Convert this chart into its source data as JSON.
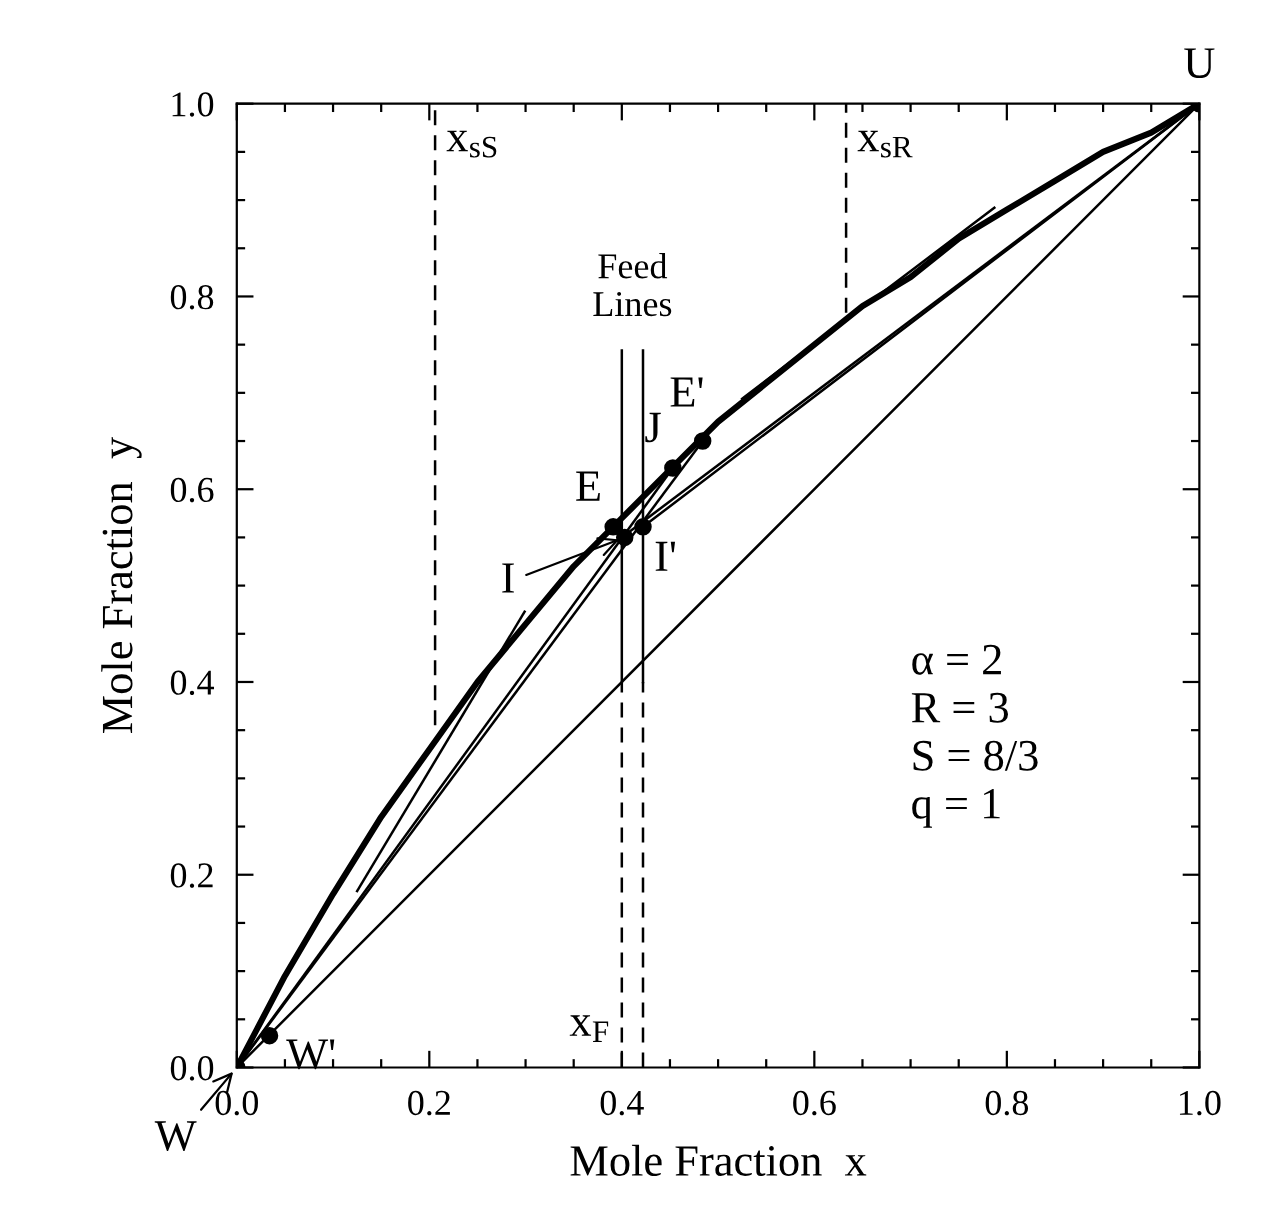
{
  "chart_data": {
    "type": "line",
    "xlabel": "Mole Fraction  x",
    "ylabel": "Mole Fraction  y",
    "xlim": [
      0,
      1
    ],
    "ylim": [
      0,
      1
    ],
    "xticks": [
      {
        "value": 0.0,
        "label": "0.0"
      },
      {
        "value": 0.05,
        "label": null
      },
      {
        "value": 0.1,
        "label": null
      },
      {
        "value": 0.15,
        "label": null
      },
      {
        "value": 0.2,
        "label": "0.2"
      },
      {
        "value": 0.25,
        "label": null
      },
      {
        "value": 0.3,
        "label": null
      },
      {
        "value": 0.35,
        "label": null
      },
      {
        "value": 0.4,
        "label": "0.4"
      },
      {
        "value": 0.45,
        "label": null
      },
      {
        "value": 0.5,
        "label": null
      },
      {
        "value": 0.55,
        "label": null
      },
      {
        "value": 0.6,
        "label": "0.6"
      },
      {
        "value": 0.65,
        "label": null
      },
      {
        "value": 0.7,
        "label": null
      },
      {
        "value": 0.75,
        "label": null
      },
      {
        "value": 0.8,
        "label": "0.8"
      },
      {
        "value": 0.85,
        "label": null
      },
      {
        "value": 0.9,
        "label": null
      },
      {
        "value": 0.95,
        "label": null
      },
      {
        "value": 1.0,
        "label": "1.0"
      }
    ],
    "yticks": [
      {
        "value": 0.0,
        "label": "0.0"
      },
      {
        "value": 0.05,
        "label": null
      },
      {
        "value": 0.1,
        "label": null
      },
      {
        "value": 0.15,
        "label": null
      },
      {
        "value": 0.2,
        "label": "0.2"
      },
      {
        "value": 0.25,
        "label": null
      },
      {
        "value": 0.3,
        "label": null
      },
      {
        "value": 0.35,
        "label": null
      },
      {
        "value": 0.4,
        "label": "0.4"
      },
      {
        "value": 0.45,
        "label": null
      },
      {
        "value": 0.5,
        "label": null
      },
      {
        "value": 0.55,
        "label": null
      },
      {
        "value": 0.6,
        "label": "0.6"
      },
      {
        "value": 0.65,
        "label": null
      },
      {
        "value": 0.7,
        "label": null
      },
      {
        "value": 0.75,
        "label": null
      },
      {
        "value": 0.8,
        "label": "0.8"
      },
      {
        "value": 0.85,
        "label": null
      },
      {
        "value": 0.9,
        "label": null
      },
      {
        "value": 0.95,
        "label": null
      },
      {
        "value": 1.0,
        "label": "1.0"
      }
    ],
    "series": [
      {
        "color": "#000000",
        "line_style": "solid",
        "x": [
          0,
          0.05,
          0.1,
          0.15,
          0.2,
          0.25,
          0.3,
          0.35,
          0.4,
          0.45,
          0.5,
          0.55,
          0.6,
          0.65,
          0.7,
          0.75,
          0.8,
          0.85,
          0.9,
          0.95,
          1.0
        ],
        "values": [
          0,
          0.095,
          0.18,
          0.26,
          0.33,
          0.4,
          0.46,
          0.52,
          0.57,
          0.62,
          0.67,
          0.71,
          0.75,
          0.79,
          0.82,
          0.86,
          0.89,
          0.92,
          0.95,
          0.97,
          1.0
        ]
      },
      {
        "type": "line",
        "color": "#000000",
        "line_style": "solid",
        "x": [
          0,
          1
        ],
        "values": [
          0,
          1
        ]
      },
      {
        "type": "line",
        "color": "#000000",
        "line_style": "solid",
        "x": [
          0.4,
          1
        ],
        "values": [
          0.55,
          1
        ]
      },
      {
        "type": "line",
        "color": "#000000",
        "line_style": "solid",
        "x": [
          0.422,
          1
        ],
        "values": [
          0.561,
          1
        ]
      },
      {
        "type": "line",
        "color": "#000000",
        "line_style": "solid",
        "x": [
          0,
          0.453
        ],
        "values": [
          0,
          0.622
        ]
      },
      {
        "type": "line",
        "color": "#000000",
        "line_style": "solid",
        "x": [
          0,
          0.484
        ],
        "values": [
          0,
          0.65
        ]
      },
      {
        "type": "line",
        "color": "#000000",
        "line_style": "solid",
        "x": [
          0.125,
          0.299
        ],
        "values": [
          0.183,
          0.473
        ]
      },
      {
        "type": "line",
        "color": "#000000",
        "line_style": "solid",
        "x": [
          0.525,
          0.787
        ],
        "values": [
          0.694,
          0.892
        ]
      },
      {
        "type": "line",
        "color": "#000000",
        "line_style": "solid",
        "x": [
          0.4,
          0.4
        ],
        "values": [
          0.4,
          0.744
        ]
      },
      {
        "type": "line",
        "color": "#000000",
        "line_style": "solid",
        "x": [
          0.422,
          0.422
        ],
        "values": [
          0.4,
          0.744
        ]
      },
      {
        "type": "line",
        "color": "#000000",
        "line_style": "dashed",
        "x": [
          0.4,
          0.4
        ],
        "values": [
          0,
          0.4
        ]
      },
      {
        "type": "line",
        "color": "#000000",
        "line_style": "dashed",
        "x": [
          0.422,
          0.422
        ],
        "values": [
          0,
          0.4
        ]
      },
      {
        "type": "line",
        "color": "#000000",
        "line_style": "dashed",
        "x": [
          0.206,
          0.206
        ],
        "values": [
          0.355,
          1.0
        ]
      },
      {
        "type": "line",
        "color": "#000000",
        "line_style": "dashed",
        "x": [
          0.633,
          0.633
        ],
        "values": [
          0.783,
          1.0
        ]
      },
      {
        "type": "scatter",
        "color": "#000000",
        "marker": "circle",
        "x": [
          0,
          0.034,
          0.391,
          0.403,
          0.422,
          0.453,
          0.484,
          1.0
        ],
        "values": [
          0,
          0.033,
          0.561,
          0.55,
          0.561,
          0.622,
          0.65,
          1.0
        ]
      }
    ],
    "annotations": [
      {
        "text": "U",
        "x": 1.0,
        "y": 1.0
      },
      {
        "text": "W",
        "x": 0,
        "y": 0
      },
      {
        "text": "W'",
        "x": 0.034,
        "y": 0.033
      },
      {
        "text": "E",
        "x": 0.391,
        "y": 0.561
      },
      {
        "text": "I",
        "x": 0.403,
        "y": 0.55
      },
      {
        "text": "I'",
        "x": 0.422,
        "y": 0.561
      },
      {
        "text": "J",
        "x": 0.453,
        "y": 0.622
      },
      {
        "text": "E'",
        "x": 0.484,
        "y": 0.65
      },
      {
        "text": "x$_{sS}$",
        "x": 0.206,
        "y": 1.0
      },
      {
        "text": "x$_{sR}$",
        "x": 0.633,
        "y": 1.0
      },
      {
        "text": "x$_{F}$",
        "x": 0.4,
        "y": 0
      },
      "Feed\nLines",
      "α = 2\nR = 3\nS = 8/3\nq = 1"
    ]
  }
}
